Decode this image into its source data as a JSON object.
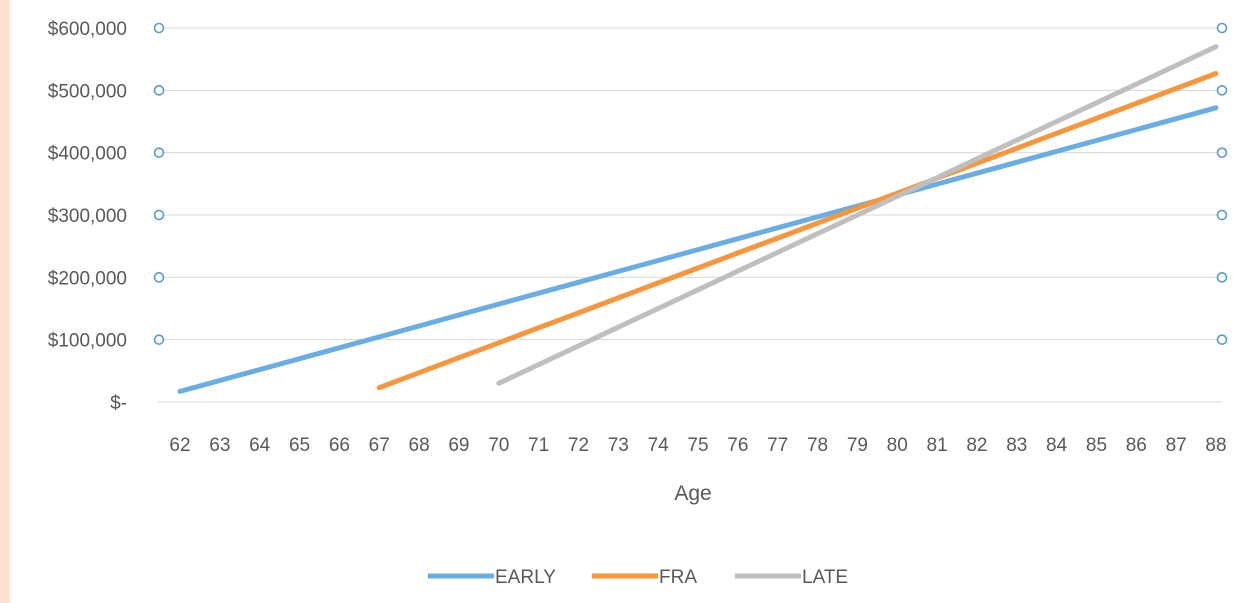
{
  "chart_data": {
    "type": "line",
    "title": "",
    "xlabel": "Age",
    "ylabel": "",
    "x": [
      62,
      63,
      64,
      65,
      66,
      67,
      68,
      69,
      70,
      71,
      72,
      73,
      74,
      75,
      76,
      77,
      78,
      79,
      80,
      81,
      82,
      83,
      84,
      85,
      86,
      87,
      88
    ],
    "x_tick_labels": [
      "62",
      "63",
      "64",
      "65",
      "66",
      "67",
      "68",
      "69",
      "70",
      "71",
      "72",
      "73",
      "74",
      "75",
      "76",
      "77",
      "78",
      "79",
      "80",
      "81",
      "82",
      "83",
      "84",
      "85",
      "86",
      "87",
      "88"
    ],
    "ylim": [
      0,
      600000
    ],
    "y_ticks": [
      0,
      100000,
      200000,
      300000,
      400000,
      500000,
      600000
    ],
    "y_tick_labels": [
      "$-",
      "$100,000",
      "$200,000",
      "$300,000",
      "$400,000",
      "$500,000",
      "$600,000"
    ],
    "grid": "horizontal",
    "legend_position": "bottom",
    "secondary_axis_markers": "circles on both sides at each gridline",
    "series": [
      {
        "name": "EARLY",
        "color": "#6aade4",
        "x": [
          62,
          63,
          64,
          65,
          66,
          67,
          68,
          69,
          70,
          71,
          72,
          73,
          74,
          75,
          76,
          77,
          78,
          79,
          80,
          81,
          82,
          83,
          84,
          85,
          86,
          87,
          88
        ],
        "values": [
          17000,
          34500,
          52000,
          69500,
          87000,
          104500,
          122000,
          139500,
          157000,
          174500,
          192000,
          209500,
          227000,
          244500,
          262000,
          279500,
          297000,
          314500,
          332000,
          349500,
          367000,
          384500,
          402000,
          419500,
          437000,
          454500,
          472000
        ]
      },
      {
        "name": "FRA",
        "color": "#f7963c",
        "x": [
          67,
          68,
          69,
          70,
          71,
          72,
          73,
          74,
          75,
          76,
          77,
          78,
          79,
          80,
          81,
          82,
          83,
          84,
          85,
          86,
          87,
          88
        ],
        "values": [
          23000,
          47000,
          71000,
          95000,
          119000,
          143000,
          167000,
          191000,
          215000,
          239000,
          263000,
          287000,
          311000,
          335000,
          359000,
          383000,
          407000,
          431000,
          455000,
          479000,
          503000,
          527000
        ]
      },
      {
        "name": "LATE",
        "color": "#bfbfbf",
        "x": [
          70,
          71,
          72,
          73,
          74,
          75,
          76,
          77,
          78,
          79,
          80,
          81,
          82,
          83,
          84,
          85,
          86,
          87,
          88
        ],
        "values": [
          30000,
          60000,
          90000,
          120000,
          150000,
          180000,
          210000,
          240000,
          270000,
          300000,
          330000,
          360000,
          390000,
          420000,
          450000,
          480000,
          510000,
          540000,
          570000
        ]
      }
    ]
  }
}
